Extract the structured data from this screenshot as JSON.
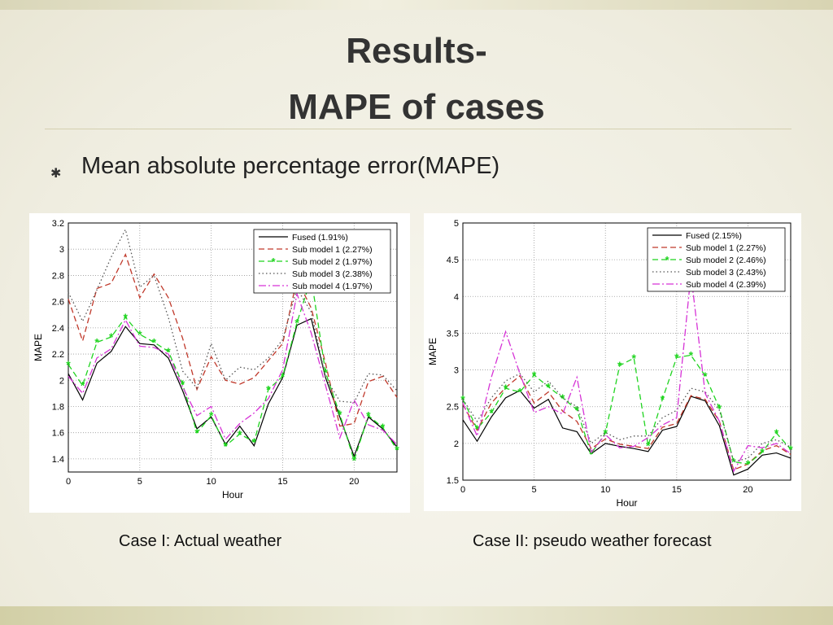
{
  "slide": {
    "title_line1": "Results-",
    "title_line2": "MAPE of cases",
    "bullet": "Mean absolute percentage error(MAPE)",
    "caption1": "Case I: Actual weather",
    "caption2": "Case II: pseudo weather forecast"
  },
  "chart_data": [
    {
      "type": "line",
      "xlabel": "Hour",
      "ylabel": "MAPE",
      "xlim": [
        0,
        23
      ],
      "ylim": [
        1.3,
        3.2
      ],
      "xticks": [
        "0",
        "5",
        "10",
        "15",
        "20"
      ],
      "yticks": [
        "1.4",
        "1.6",
        "1.8",
        "2",
        "2.2",
        "2.4",
        "2.6",
        "2.8",
        "3",
        "3.2"
      ],
      "grid": true,
      "legend_position": "top-right",
      "x": [
        0,
        1,
        2,
        3,
        4,
        5,
        6,
        7,
        8,
        9,
        10,
        11,
        12,
        13,
        14,
        15,
        16,
        17,
        18,
        19,
        20,
        21,
        22,
        23
      ],
      "series": [
        {
          "name": "Fused (1.91%)",
          "color": "#000000",
          "style": "solid",
          "marker": false,
          "values": [
            2.05,
            1.85,
            2.13,
            2.22,
            2.41,
            2.28,
            2.27,
            2.17,
            1.92,
            1.63,
            1.72,
            1.51,
            1.65,
            1.5,
            1.82,
            2.02,
            2.42,
            2.47,
            2.02,
            1.72,
            1.42,
            1.72,
            1.63,
            1.49
          ]
        },
        {
          "name": "Sub model 1 (2.27%)",
          "color": "#c0392b",
          "style": "dash",
          "marker": false,
          "values": [
            2.62,
            2.3,
            2.7,
            2.74,
            2.96,
            2.63,
            2.81,
            2.63,
            2.32,
            1.93,
            2.18,
            2.0,
            1.97,
            2.02,
            2.15,
            2.28,
            2.77,
            2.55,
            2.13,
            1.65,
            1.67,
            1.99,
            2.03,
            1.87
          ]
        },
        {
          "name": "Sub model 2 (1.97%)",
          "color": "#1fd41f",
          "style": "dash",
          "marker": true,
          "values": [
            2.12,
            1.96,
            2.29,
            2.33,
            2.48,
            2.35,
            2.29,
            2.22,
            1.97,
            1.6,
            1.73,
            1.5,
            1.59,
            1.53,
            1.93,
            2.03,
            2.44,
            2.78,
            2.06,
            1.74,
            1.39,
            1.73,
            1.64,
            1.47
          ]
        },
        {
          "name": "Sub model 3 (2.38%)",
          "color": "#555555",
          "style": "dot",
          "marker": false,
          "values": [
            2.67,
            2.45,
            2.69,
            2.94,
            3.15,
            2.71,
            2.8,
            2.48,
            2.07,
            1.94,
            2.28,
            2.0,
            2.1,
            2.08,
            2.17,
            2.31,
            2.7,
            2.52,
            2.02,
            1.84,
            1.83,
            2.05,
            2.04,
            1.92
          ]
        },
        {
          "name": "Sub model 4 (1.97%)",
          "color": "#d633d6",
          "style": "dashdot",
          "marker": false,
          "values": [
            2.03,
            1.9,
            2.17,
            2.24,
            2.46,
            2.26,
            2.25,
            2.2,
            1.95,
            1.73,
            1.8,
            1.55,
            1.67,
            1.75,
            1.86,
            2.08,
            2.66,
            2.36,
            1.96,
            1.56,
            1.85,
            1.66,
            1.62,
            1.51
          ]
        }
      ]
    },
    {
      "type": "line",
      "xlabel": "Hour",
      "ylabel": "MAPE",
      "xlim": [
        0,
        23
      ],
      "ylim": [
        1.5,
        5
      ],
      "xticks": [
        "0",
        "5",
        "10",
        "15",
        "20"
      ],
      "yticks": [
        "1.5",
        "2",
        "2.5",
        "3",
        "3.5",
        "4",
        "4.5",
        "5"
      ],
      "grid": true,
      "legend_position": "top-right",
      "x": [
        0,
        1,
        2,
        3,
        4,
        5,
        6,
        7,
        8,
        9,
        10,
        11,
        12,
        13,
        14,
        15,
        16,
        17,
        18,
        19,
        20,
        21,
        22,
        23
      ],
      "series": [
        {
          "name": "Fused (2.15%)",
          "color": "#000000",
          "style": "solid",
          "marker": false,
          "values": [
            2.32,
            2.03,
            2.36,
            2.62,
            2.72,
            2.48,
            2.6,
            2.21,
            2.16,
            1.86,
            2.0,
            1.96,
            1.93,
            1.89,
            2.18,
            2.23,
            2.64,
            2.58,
            2.24,
            1.57,
            1.65,
            1.84,
            1.87,
            1.8
          ]
        },
        {
          "name": "Sub model 1 (2.27%)",
          "color": "#c0392b",
          "style": "dash",
          "marker": false,
          "values": [
            2.53,
            2.18,
            2.55,
            2.76,
            2.92,
            2.55,
            2.7,
            2.44,
            2.3,
            1.93,
            2.06,
            1.99,
            1.96,
            1.93,
            2.22,
            2.27,
            2.65,
            2.6,
            2.3,
            1.64,
            1.72,
            1.9,
            1.97,
            1.85
          ]
        },
        {
          "name": "Sub model 2 (2.46%)",
          "color": "#1fd41f",
          "style": "dash",
          "marker": true,
          "values": [
            2.6,
            2.2,
            2.42,
            2.75,
            2.7,
            2.93,
            2.77,
            2.62,
            2.46,
            1.86,
            2.14,
            3.06,
            3.16,
            1.97,
            2.6,
            3.17,
            3.2,
            2.92,
            2.48,
            1.75,
            1.72,
            1.88,
            2.14,
            1.92
          ]
        },
        {
          "name": "Sub model 3 (2.43%)",
          "color": "#555555",
          "style": "dot",
          "marker": false,
          "values": [
            2.6,
            2.3,
            2.62,
            2.85,
            2.95,
            2.7,
            2.85,
            2.62,
            2.5,
            2.0,
            2.15,
            2.05,
            2.1,
            2.1,
            2.35,
            2.45,
            2.75,
            2.7,
            2.45,
            1.75,
            1.8,
            2.0,
            2.05,
            1.95
          ]
        },
        {
          "name": "Sub model 4 (2.39%)",
          "color": "#d633d6",
          "style": "dashdot",
          "marker": false,
          "values": [
            2.55,
            2.1,
            2.9,
            3.52,
            2.95,
            2.42,
            2.5,
            2.4,
            2.9,
            1.88,
            2.12,
            1.94,
            1.96,
            2.08,
            2.25,
            2.35,
            4.3,
            2.68,
            2.3,
            1.62,
            1.97,
            1.94,
            2.0,
            1.86
          ]
        }
      ]
    }
  ]
}
